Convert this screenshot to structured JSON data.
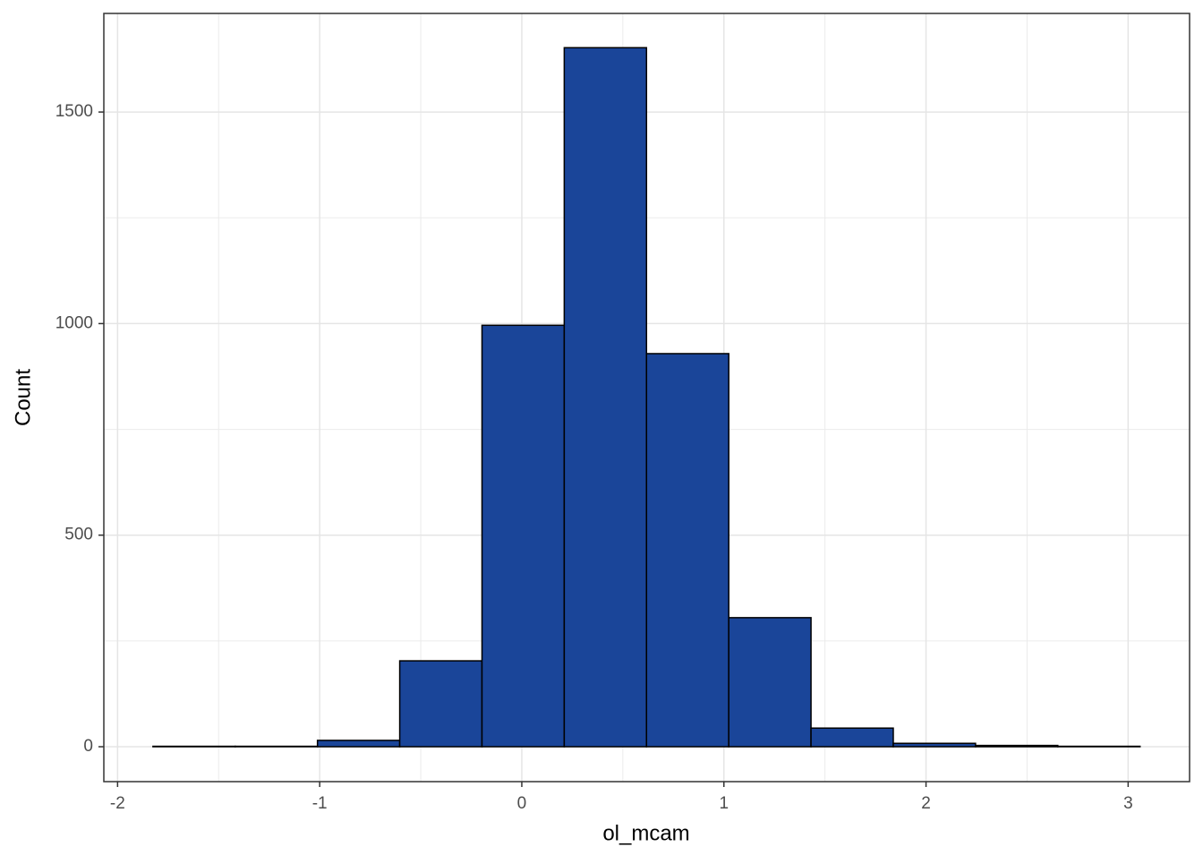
{
  "chart_data": {
    "type": "histogram",
    "x_label": "ol_mcam",
    "y_label": "Count",
    "bins": [
      -1.825,
      -1.418,
      -1.011,
      -0.604,
      -0.197,
      0.21,
      0.617,
      1.024,
      1.431,
      1.838,
      2.245,
      2.652,
      3.059
    ],
    "counts": [
      1,
      1,
      15,
      203,
      996,
      1652,
      929,
      305,
      44,
      8,
      3,
      1
    ],
    "color": "#1a4599",
    "edge_color": "#000000",
    "xlim": [
      -2.068,
      3.304
    ],
    "ylim": [
      -82.5,
      1733
    ],
    "xticks": [
      -2,
      -1,
      0,
      1,
      2,
      3
    ],
    "yticks": [
      0,
      500,
      1000,
      1500
    ],
    "grid": true
  }
}
